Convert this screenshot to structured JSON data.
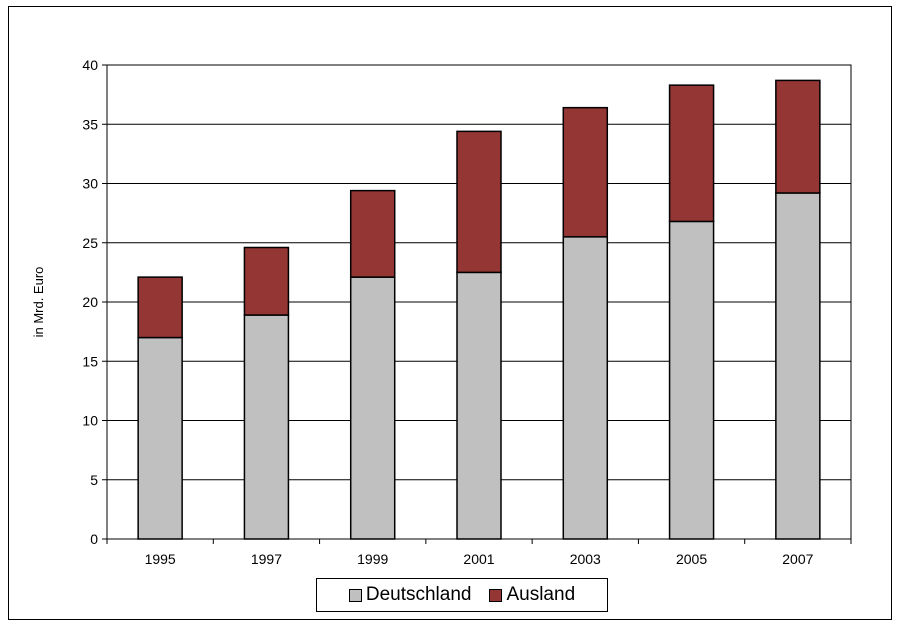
{
  "chart_data": {
    "type": "bar",
    "stacked": true,
    "categories": [
      "1995",
      "1997",
      "1999",
      "2001",
      "2003",
      "2005",
      "2007"
    ],
    "series": [
      {
        "name": "Deutschland",
        "color": "#c0c0c0",
        "values": [
          17.0,
          18.9,
          22.1,
          22.5,
          25.5,
          26.8,
          29.2
        ]
      },
      {
        "name": "Ausland",
        "color": "#943634",
        "values": [
          5.1,
          5.7,
          7.3,
          11.9,
          10.9,
          11.5,
          9.5
        ]
      }
    ],
    "ylabel": "in Mrd. Euro",
    "ylim": [
      0,
      40
    ],
    "yticks": [
      0,
      5,
      10,
      15,
      20,
      25,
      30,
      35,
      40
    ],
    "grid": true,
    "legend_position": "bottom"
  }
}
